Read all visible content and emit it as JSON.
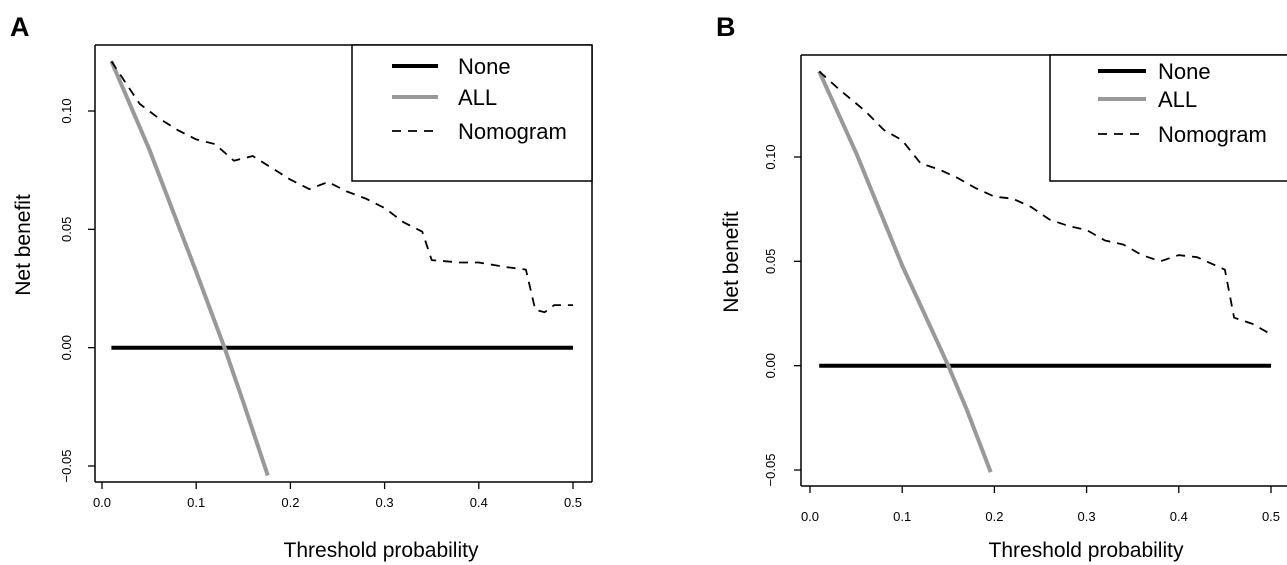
{
  "chart_data": [
    {
      "panel_label": "A",
      "type": "line",
      "xlabel": "Threshold probability",
      "ylabel": "Net benefit",
      "xlim": [
        0,
        0.5
      ],
      "ylim": [
        -0.05,
        0.12
      ],
      "x_ticks": [
        "0.0",
        "0.1",
        "0.2",
        "0.3",
        "0.4",
        "0.5"
      ],
      "x_tick_values": [
        0,
        0.1,
        0.2,
        0.3,
        0.4,
        0.5
      ],
      "y_ticks": [
        "−0.05",
        "0.00",
        "0.05",
        "0.10"
      ],
      "y_tick_values": [
        -0.05,
        0,
        0.05,
        0.1
      ],
      "legend_position": "top-right",
      "series": [
        {
          "name": "None",
          "style": "solid",
          "color": "#000000",
          "x": [
            0.01,
            0.5
          ],
          "y": [
            0,
            0
          ]
        },
        {
          "name": "ALL",
          "style": "solid",
          "color": "#999999",
          "x": [
            0.01,
            0.05,
            0.1,
            0.13,
            0.15,
            0.176
          ],
          "y": [
            0.121,
            0.084,
            0.032,
            0.0,
            -0.023,
            -0.054
          ]
        },
        {
          "name": "Nomogram",
          "style": "dashed",
          "color": "#000000",
          "x": [
            0.01,
            0.02,
            0.04,
            0.06,
            0.08,
            0.1,
            0.12,
            0.14,
            0.16,
            0.18,
            0.2,
            0.22,
            0.24,
            0.26,
            0.28,
            0.3,
            0.32,
            0.34,
            0.35,
            0.38,
            0.4,
            0.43,
            0.45,
            0.46,
            0.47,
            0.48,
            0.5
          ],
          "y": [
            0.121,
            0.115,
            0.103,
            0.097,
            0.092,
            0.088,
            0.086,
            0.079,
            0.081,
            0.076,
            0.071,
            0.067,
            0.07,
            0.066,
            0.063,
            0.059,
            0.053,
            0.049,
            0.037,
            0.036,
            0.036,
            0.034,
            0.033,
            0.016,
            0.015,
            0.018,
            0.018
          ]
        }
      ]
    },
    {
      "panel_label": "B",
      "type": "line",
      "xlabel": "Threshold probability",
      "ylabel": "Net benefit",
      "xlim": [
        0,
        0.5
      ],
      "ylim": [
        -0.05,
        0.14
      ],
      "x_ticks": [
        "0.0",
        "0.1",
        "0.2",
        "0.3",
        "0.4",
        "0.5"
      ],
      "x_tick_values": [
        0,
        0.1,
        0.2,
        0.3,
        0.4,
        0.5
      ],
      "y_ticks": [
        "−0.05",
        "0.00",
        "0.05",
        "0.10"
      ],
      "y_tick_values": [
        -0.05,
        0,
        0.05,
        0.1
      ],
      "legend_position": "top-right",
      "series": [
        {
          "name": "None",
          "style": "solid",
          "color": "#000000",
          "x": [
            0.01,
            0.5
          ],
          "y": [
            0,
            0
          ]
        },
        {
          "name": "ALL",
          "style": "solid",
          "color": "#999999",
          "x": [
            0.01,
            0.05,
            0.1,
            0.15,
            0.17,
            0.196
          ],
          "y": [
            0.141,
            0.102,
            0.048,
            0.0,
            -0.021,
            -0.051
          ]
        },
        {
          "name": "Nomogram",
          "style": "dashed",
          "color": "#000000",
          "x": [
            0.01,
            0.03,
            0.06,
            0.08,
            0.1,
            0.12,
            0.14,
            0.16,
            0.18,
            0.2,
            0.22,
            0.24,
            0.26,
            0.28,
            0.3,
            0.32,
            0.34,
            0.36,
            0.38,
            0.4,
            0.42,
            0.45,
            0.46,
            0.48,
            0.5
          ],
          "y": [
            0.141,
            0.133,
            0.122,
            0.113,
            0.108,
            0.097,
            0.094,
            0.09,
            0.085,
            0.081,
            0.08,
            0.076,
            0.07,
            0.067,
            0.065,
            0.06,
            0.058,
            0.053,
            0.05,
            0.053,
            0.052,
            0.046,
            0.023,
            0.02,
            0.015
          ]
        }
      ]
    }
  ]
}
